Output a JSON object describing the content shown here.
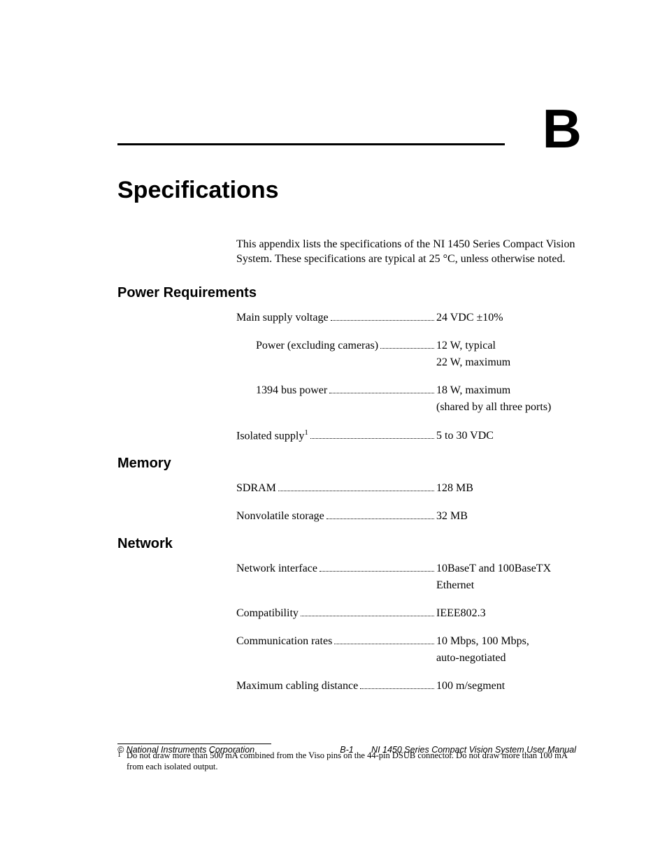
{
  "appendix_letter": "B",
  "page_title": "Specifications",
  "intro": "This appendix lists the specifications of the NI 1450 Series Compact Vision System. These specifications are typical at 25 °C, unless otherwise noted.",
  "sections": {
    "power": {
      "heading": "Power Requirements",
      "items": {
        "main_supply": {
          "label": "Main supply voltage",
          "value": "24 VDC ±10%"
        },
        "power_excl": {
          "label": "Power (excluding cameras)",
          "value": "12 W, typical",
          "value2": "22 W, maximum"
        },
        "bus_power": {
          "label": "1394 bus power",
          "value": "18 W, maximum",
          "value2": "(shared by all three ports)"
        },
        "isolated": {
          "label_pre": "Isolated supply",
          "label_sup": "1",
          "value": "5 to 30 VDC"
        }
      }
    },
    "memory": {
      "heading": "Memory",
      "items": {
        "sdram": {
          "label": "SDRAM",
          "value": "128 MB"
        },
        "nonvolatile": {
          "label": "Nonvolatile storage",
          "value": "32 MB"
        }
      }
    },
    "network": {
      "heading": "Network",
      "items": {
        "interface": {
          "label": "Network interface",
          "value": "10BaseT and 100BaseTX",
          "value2": "Ethernet"
        },
        "compatibility": {
          "label": "Compatibility",
          "value": "IEEE802.3"
        },
        "rates": {
          "label": "Communication rates",
          "value": "10 Mbps, 100 Mbps,",
          "value2": "auto-negotiated"
        },
        "cabling": {
          "label": "Maximum cabling distance",
          "value": "100 m/segment"
        }
      }
    }
  },
  "footnote": {
    "marker": "1",
    "text": "Do not draw more than 500 mA combined from the Viso pins on the 44-pin DSUB connector. Do not draw more than 100 mA from each isolated output."
  },
  "footer": {
    "left": "© National Instruments Corporation",
    "center": "B-1",
    "right": "NI 1450 Series Compact Vision System User Manual"
  }
}
